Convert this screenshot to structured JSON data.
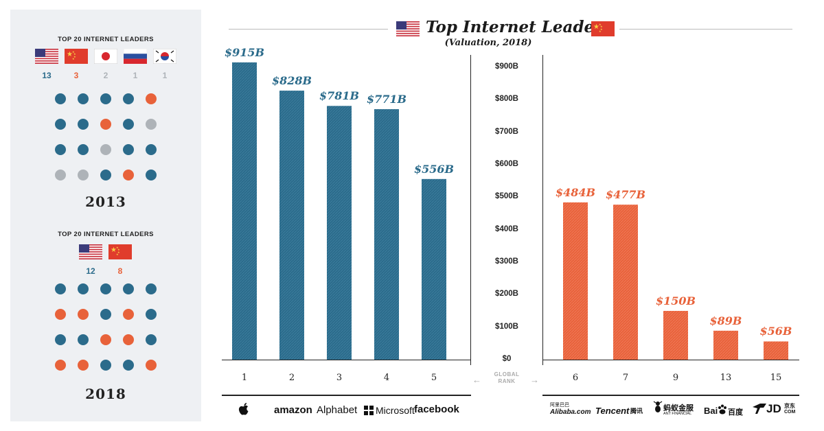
{
  "sidebar": {
    "heading_2013": "TOP 20 INTERNET LEADERS",
    "counts_2013": [
      {
        "country": "us",
        "value": "13",
        "color": "#2b6b8b"
      },
      {
        "country": "cn",
        "value": "3",
        "color": "#e8623a"
      },
      {
        "country": "jp",
        "value": "2",
        "color": "#aeb3b8"
      },
      {
        "country": "ru",
        "value": "1",
        "color": "#aeb3b8"
      },
      {
        "country": "kr",
        "value": "1",
        "color": "#aeb3b8"
      }
    ],
    "dots_2013": [
      [
        "us",
        "us",
        "us",
        "us",
        "cn"
      ],
      [
        "us",
        "us",
        "cn",
        "us",
        "other"
      ],
      [
        "us",
        "us",
        "other",
        "us",
        "us"
      ],
      [
        "other",
        "other",
        "us",
        "cn",
        "us"
      ]
    ],
    "year_2013": "2013",
    "heading_2018": "TOP 20 INTERNET LEADERS",
    "counts_2018": [
      {
        "country": "us",
        "value": "12",
        "color": "#2b6b8b"
      },
      {
        "country": "cn",
        "value": "8",
        "color": "#e8623a"
      }
    ],
    "dots_2018": [
      [
        "us",
        "us",
        "us",
        "us",
        "us"
      ],
      [
        "cn",
        "cn",
        "us",
        "cn",
        "us"
      ],
      [
        "us",
        "us",
        "cn",
        "cn",
        "us"
      ],
      [
        "cn",
        "cn",
        "us",
        "us",
        "cn"
      ]
    ],
    "year_2018": "2018"
  },
  "colors": {
    "us": "#2b6b8b",
    "cn": "#e8623a",
    "other": "#aeb3b8"
  },
  "chart_data": {
    "type": "bar",
    "title": "Top Internet Leaders",
    "subtitle": "(Valuation, 2018)",
    "xlabel": "GLOBAL RANK",
    "ylim": [
      0,
      900
    ],
    "y_ticks": [
      "$0",
      "$100B",
      "$200B",
      "$300B",
      "$400B",
      "$500B",
      "$600B",
      "$700B",
      "$800B",
      "$900B"
    ],
    "series": [
      {
        "country": "us",
        "categories": [
          "1",
          "2",
          "3",
          "4",
          "5"
        ],
        "values": [
          915,
          828,
          781,
          771,
          556
        ],
        "labels": [
          "$915B",
          "$828B",
          "$781B",
          "$771B",
          "$556B"
        ],
        "companies": [
          "Apple",
          "amazon",
          "Alphabet",
          "Microsoft",
          "facebook"
        ]
      },
      {
        "country": "cn",
        "categories": [
          "6",
          "7",
          "9",
          "13",
          "15"
        ],
        "values": [
          484,
          477,
          150,
          89,
          56
        ],
        "labels": [
          "$484B",
          "$477B",
          "$150B",
          "$89B",
          "$56B"
        ],
        "companies": [
          "Alibaba.com",
          "Tencent 腾讯",
          "ANT FINANCIAL 蚂蚁金服",
          "Bai百度",
          "JD.COM 京东"
        ]
      }
    ]
  },
  "logos": {
    "amazon": "amazon",
    "alphabet": "Alphabet",
    "microsoft": "Microsoft",
    "facebook": "facebook",
    "alibaba": "Alibaba.com",
    "alibaba_cn": "阿里巴巴",
    "tencent": "Tencent",
    "tencent_cn": "腾讯",
    "ant": "蚂蚁金服",
    "ant_en": "ANT FINANCIAL",
    "baidu": "Bai",
    "baidu_cn": "百度",
    "jd": "JD",
    "jd_cn": "京东",
    "jd_com": "COM"
  }
}
